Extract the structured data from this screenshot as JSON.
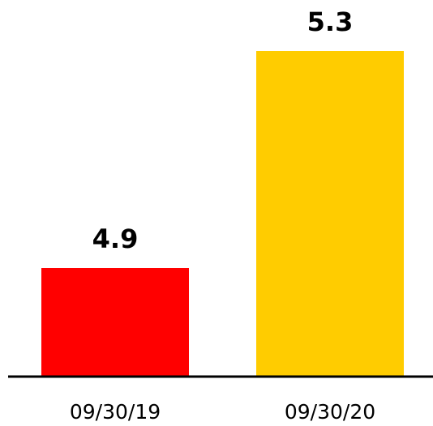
{
  "chart_data": {
    "type": "bar",
    "categories": [
      "09/30/19",
      "09/30/20"
    ],
    "values": [
      4.9,
      5.3
    ],
    "colors": [
      "#ff0000",
      "#ffcc00"
    ],
    "ylim": [
      4.7,
      5.3
    ]
  }
}
